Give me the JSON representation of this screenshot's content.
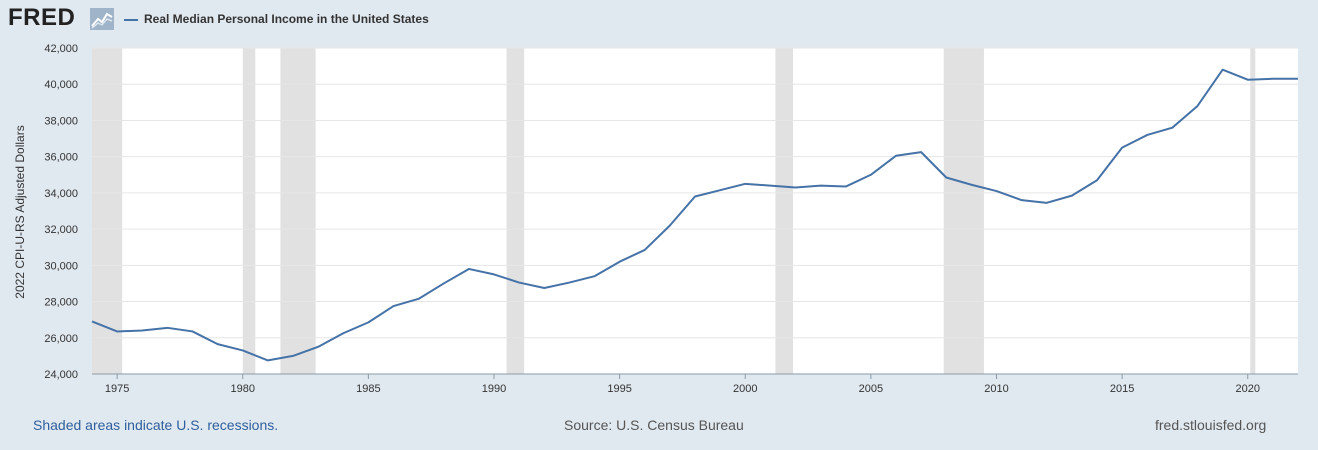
{
  "brand": {
    "logo_text": "FRED",
    "logo_icon": "chart-line-icon"
  },
  "footer": {
    "recession_note": "Shaded areas indicate U.S. recessions.",
    "source": "Source: U.S. Census Bureau",
    "url": "fred.stlouisfed.org"
  },
  "colors": {
    "background": "#e1e9f0",
    "plot_background": "#ffffff",
    "series_line": "#4572a7",
    "recession_shade": "#e1e1e1",
    "grid": "#e6e6e6"
  },
  "chart_data": {
    "type": "line",
    "title": "",
    "xlabel": "",
    "ylabel": "2022 CPI-U-RS Adjusted Dollars",
    "xlim": [
      1974,
      2022
    ],
    "ylim": [
      24000,
      42000
    ],
    "yticks": [
      "24,000",
      "26,000",
      "28,000",
      "30,000",
      "32,000",
      "34,000",
      "36,000",
      "38,000",
      "40,000",
      "42,000"
    ],
    "ytick_values": [
      24000,
      26000,
      28000,
      30000,
      32000,
      34000,
      36000,
      38000,
      40000,
      42000
    ],
    "xticks": [
      "1975",
      "1980",
      "1985",
      "1990",
      "1995",
      "2000",
      "2005",
      "2010",
      "2015",
      "2020"
    ],
    "xtick_values": [
      1975,
      1980,
      1985,
      1990,
      1995,
      2000,
      2005,
      2010,
      2015,
      2020
    ],
    "grid": true,
    "legend": "top-left",
    "recessions": [
      [
        1973.9,
        1975.2
      ],
      [
        1980.0,
        1980.5
      ],
      [
        1981.5,
        1982.9
      ],
      [
        1990.5,
        1991.2
      ],
      [
        2001.2,
        2001.9
      ],
      [
        2007.9,
        2009.5
      ],
      [
        2020.1,
        2020.3
      ]
    ],
    "series": [
      {
        "name": "Real Median Personal Income in the United States",
        "x": [
          1974,
          1975,
          1976,
          1977,
          1978,
          1979,
          1980,
          1981,
          1982,
          1983,
          1984,
          1985,
          1986,
          1987,
          1988,
          1989,
          1990,
          1991,
          1992,
          1993,
          1994,
          1995,
          1996,
          1997,
          1998,
          1999,
          2000,
          2001,
          2002,
          2003,
          2004,
          2005,
          2006,
          2007,
          2008,
          2009,
          2010,
          2011,
          2012,
          2013,
          2014,
          2015,
          2016,
          2017,
          2018,
          2019,
          2020,
          2021,
          2022
        ],
        "values": [
          26900,
          26350,
          26400,
          26550,
          26350,
          25650,
          25300,
          24750,
          25000,
          25500,
          26250,
          26850,
          27750,
          28150,
          29000,
          29800,
          29500,
          29050,
          28750,
          29050,
          29400,
          30200,
          30850,
          32200,
          33800,
          34150,
          34500,
          34400,
          34300,
          34400,
          34350,
          35000,
          36050,
          36250,
          34850,
          34450,
          34100,
          33600,
          33450,
          33850,
          34700,
          36500,
          37200,
          37600,
          38800,
          40800,
          40250,
          40300,
          40300
        ]
      }
    ]
  }
}
